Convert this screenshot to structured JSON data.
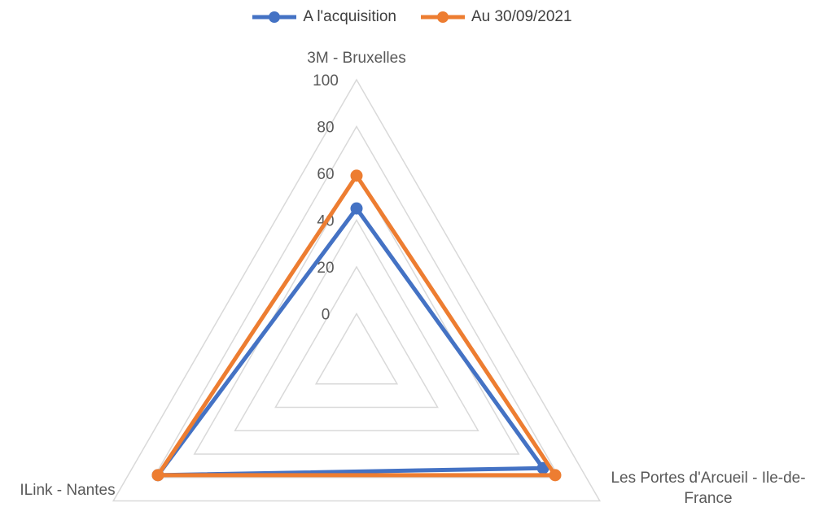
{
  "chart_data": {
    "type": "radar",
    "categories": [
      "3M - Bruxelles",
      "Les Portes d'Arcueil - Ile-de-France",
      "ILink - Nantes"
    ],
    "category_label_lines": [
      [
        "3M - Bruxelles"
      ],
      [
        "Les Portes d'Arcueil - Ile-de-",
        "France"
      ],
      [
        "ILink - Nantes"
      ]
    ],
    "series": [
      {
        "name": "A l'acquisition",
        "values": [
          45,
          72,
          78
        ],
        "color": "#4472C4"
      },
      {
        "name": "Au 30/09/2021",
        "values": [
          59,
          78,
          78
        ],
        "color": "#ED7D31"
      }
    ],
    "ticks": [
      "0",
      "20",
      "40",
      "60",
      "80",
      "100"
    ],
    "tick_values": [
      0,
      20,
      40,
      60,
      80,
      100
    ],
    "rmin": -20,
    "rmax": 100,
    "grid": true,
    "legend_position": "top",
    "grid_color": "#D9D9D9"
  }
}
